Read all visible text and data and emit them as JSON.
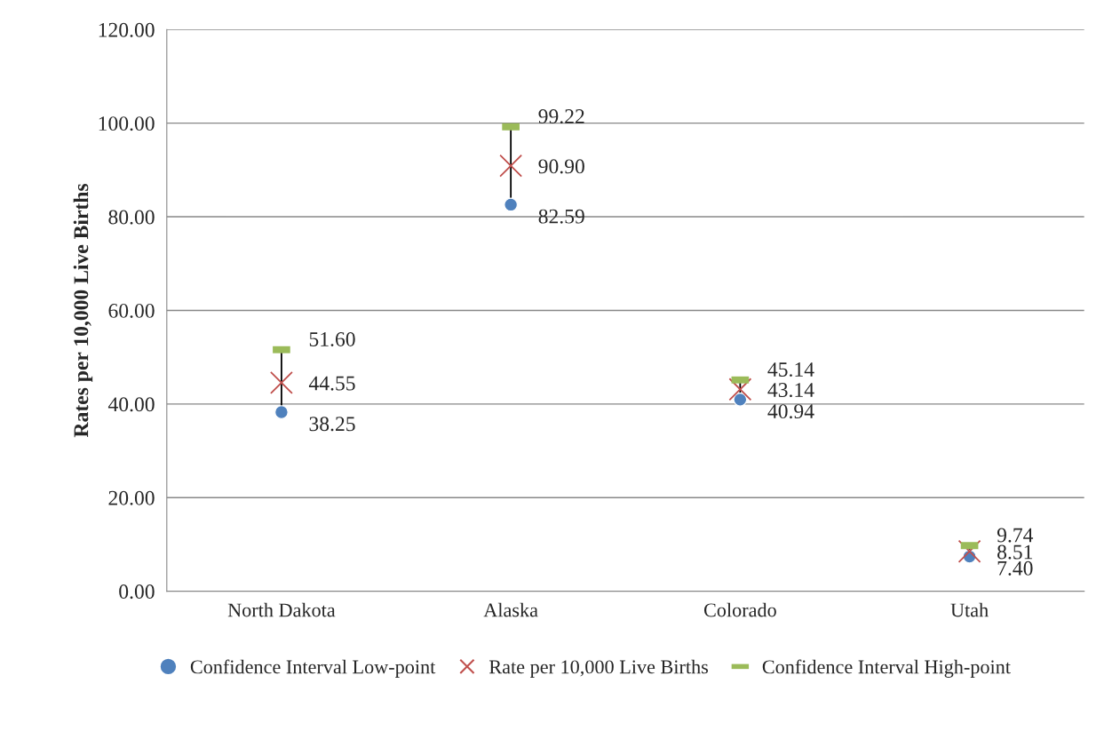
{
  "chart_data": {
    "type": "scatter",
    "ylabel": "Rates per 10,000 Live Births",
    "categories": [
      "North Dakota",
      "Alaska",
      "Colorado",
      "Utah"
    ],
    "series": [
      {
        "name": "Confidence Interval Low-point",
        "color": "#4f81bd",
        "marker": "circle",
        "values": [
          38.25,
          82.59,
          40.94,
          7.4
        ],
        "value_labels": [
          "38.25",
          "82.59",
          "40.94",
          "7.40"
        ]
      },
      {
        "name": "Rate per 10,000 Live Births",
        "color": "#c0504d",
        "marker": "cross",
        "values": [
          44.55,
          90.9,
          43.14,
          8.51
        ],
        "value_labels": [
          "44.55",
          "90.90",
          "43.14",
          "8.51"
        ]
      },
      {
        "name": "Confidence Interval High-point",
        "color": "#9bbb59",
        "values": [
          51.6,
          99.22,
          45.14,
          9.74
        ],
        "value_labels": [
          "51.60",
          "99.22",
          "45.14",
          "9.74"
        ]
      }
    ],
    "ylim": [
      0,
      120
    ],
    "yticks": [
      {
        "value": 0,
        "label": "0.00"
      },
      {
        "value": 20,
        "label": "20.00"
      },
      {
        "value": 40,
        "label": "40.00"
      },
      {
        "value": 60,
        "label": "60.00"
      },
      {
        "value": 80,
        "label": "80.00"
      },
      {
        "value": 100,
        "label": "100.00"
      },
      {
        "value": 120,
        "label": "120.00"
      }
    ],
    "grid": "y",
    "legend": "bottom"
  }
}
